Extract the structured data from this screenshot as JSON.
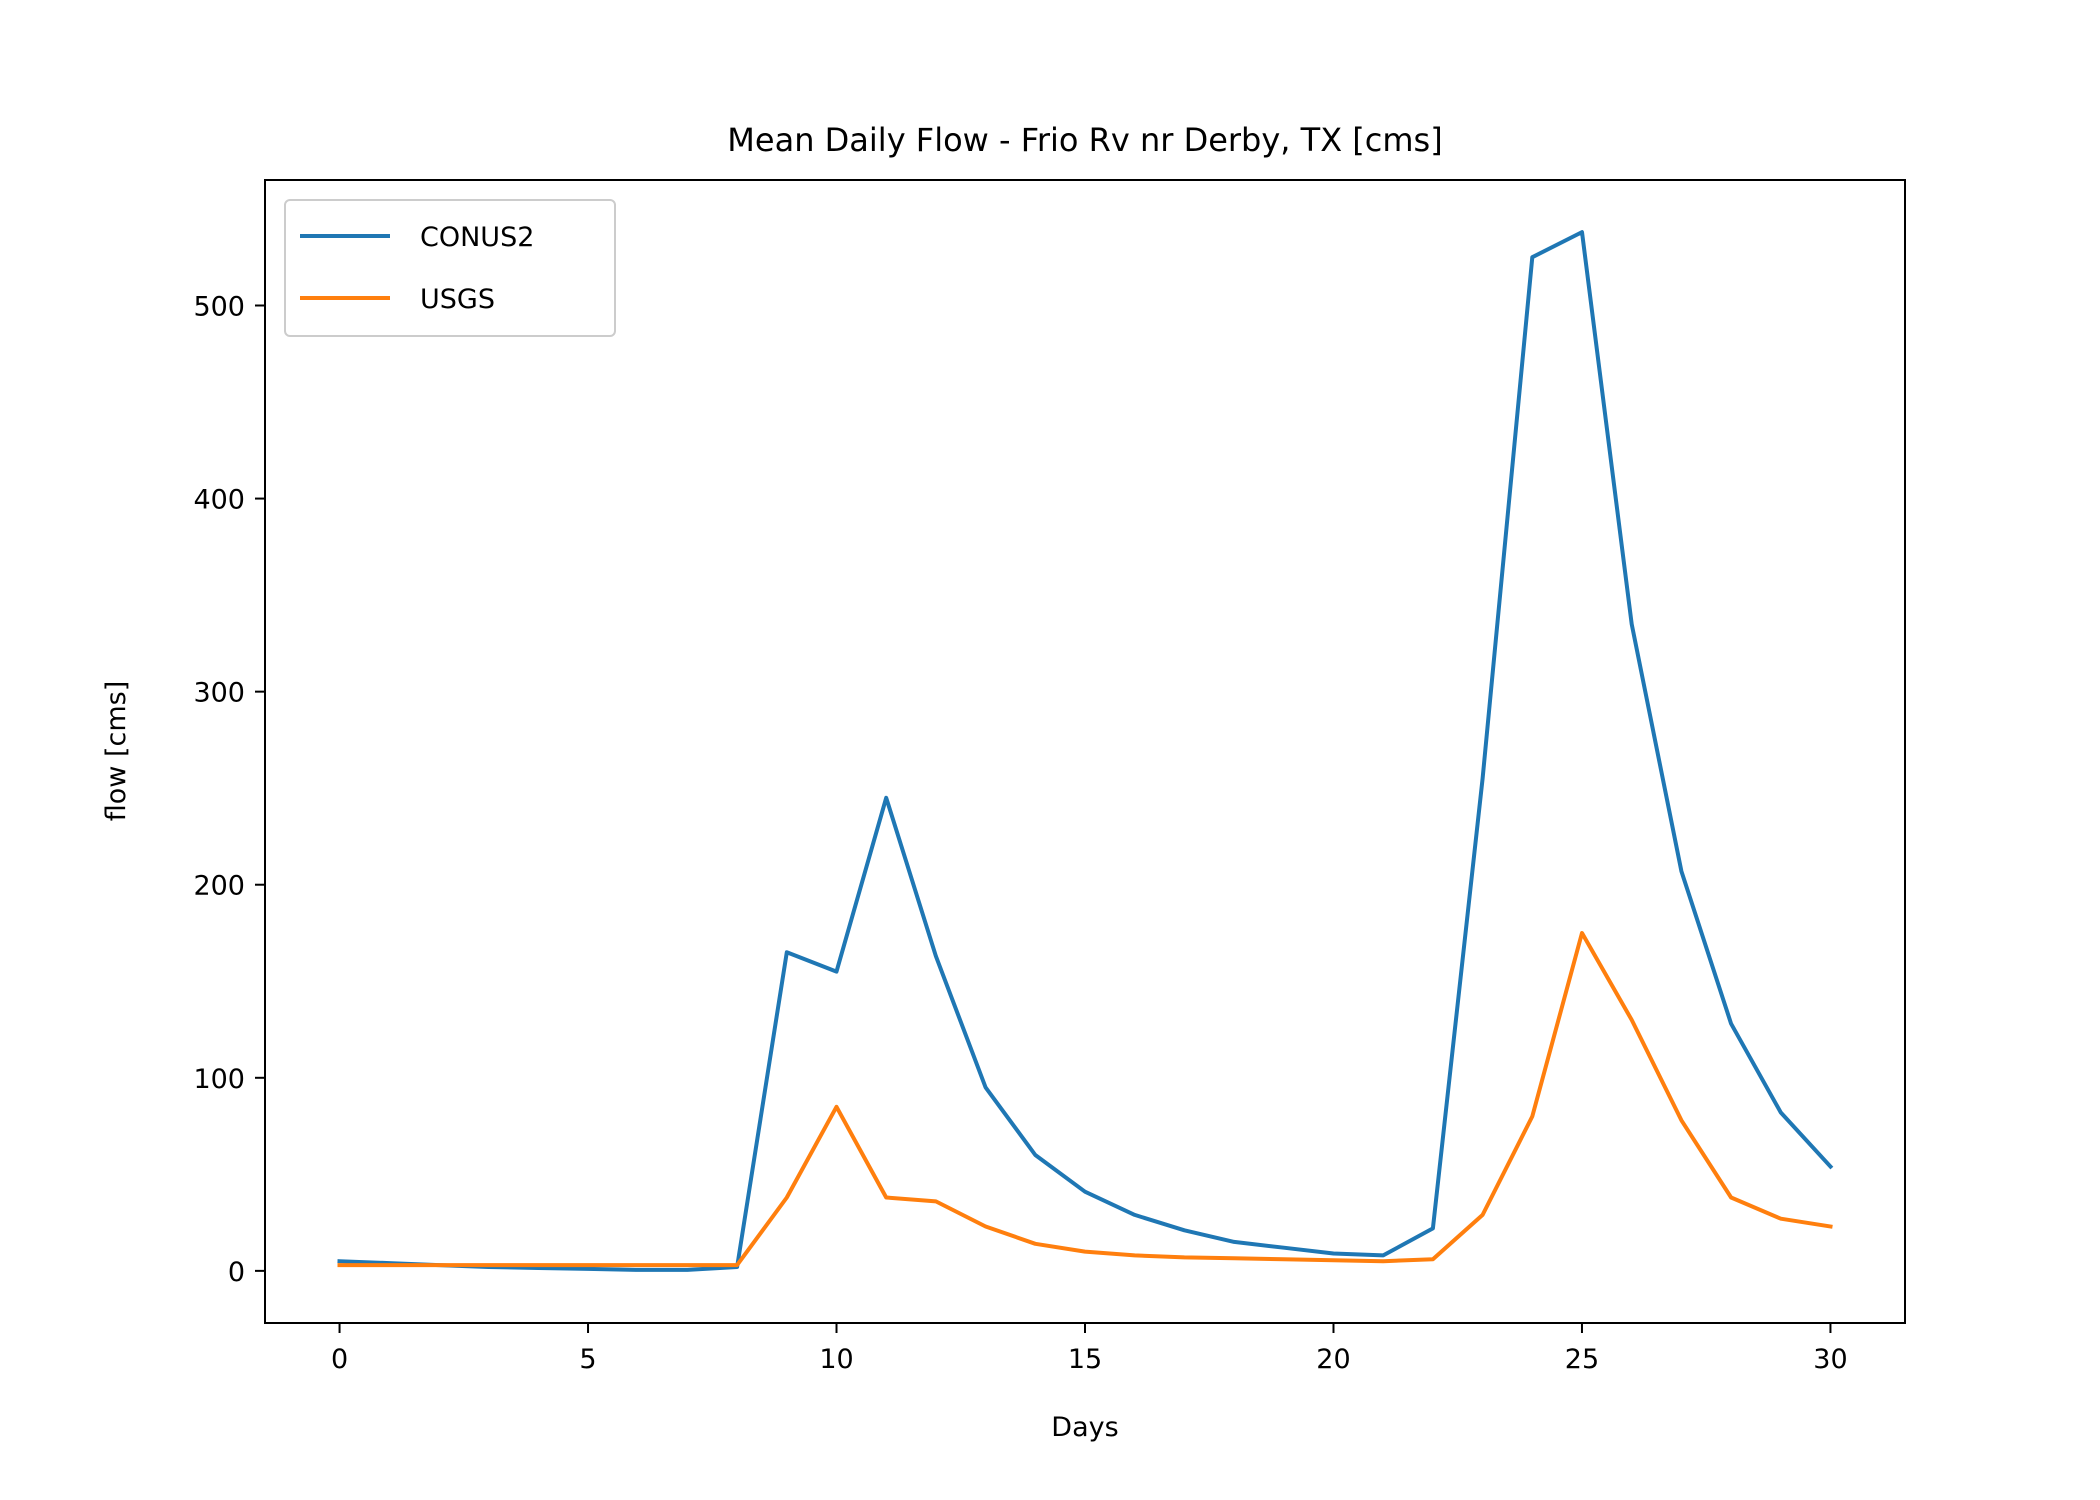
{
  "chart_data": {
    "type": "line",
    "title": "Mean Daily Flow - Frio Rv nr Derby, TX [cms]",
    "xlabel": "Days",
    "ylabel": "flow [cms]",
    "xlim": [
      -1.5,
      31.5
    ],
    "ylim": [
      -27,
      565
    ],
    "xticks": [
      0,
      5,
      10,
      15,
      20,
      25,
      30
    ],
    "yticks": [
      0,
      100,
      200,
      300,
      400,
      500
    ],
    "grid": false,
    "legend_position": "upper left",
    "x": [
      0,
      1,
      2,
      3,
      4,
      5,
      6,
      7,
      8,
      9,
      10,
      11,
      12,
      13,
      14,
      15,
      16,
      17,
      18,
      19,
      20,
      21,
      22,
      23,
      24,
      25,
      26,
      27,
      28,
      29,
      30
    ],
    "series": [
      {
        "name": "CONUS2",
        "color": "#1f77b4",
        "values": [
          5,
          4,
          3,
          2,
          1.5,
          1,
          0.5,
          0.5,
          2,
          165,
          155,
          245,
          163,
          95,
          60,
          41,
          29,
          21,
          15,
          12,
          9,
          8,
          22,
          255,
          525,
          538,
          335,
          207,
          128,
          82,
          54
        ]
      },
      {
        "name": "USGS",
        "color": "#ff7f0e",
        "values": [
          3,
          3,
          3,
          3,
          3,
          3,
          3,
          3,
          3,
          38,
          85,
          38,
          36,
          23,
          14,
          10,
          8,
          7,
          6.5,
          6,
          5.5,
          5,
          6,
          29,
          80,
          175,
          130,
          78,
          38,
          27,
          23
        ]
      }
    ]
  }
}
